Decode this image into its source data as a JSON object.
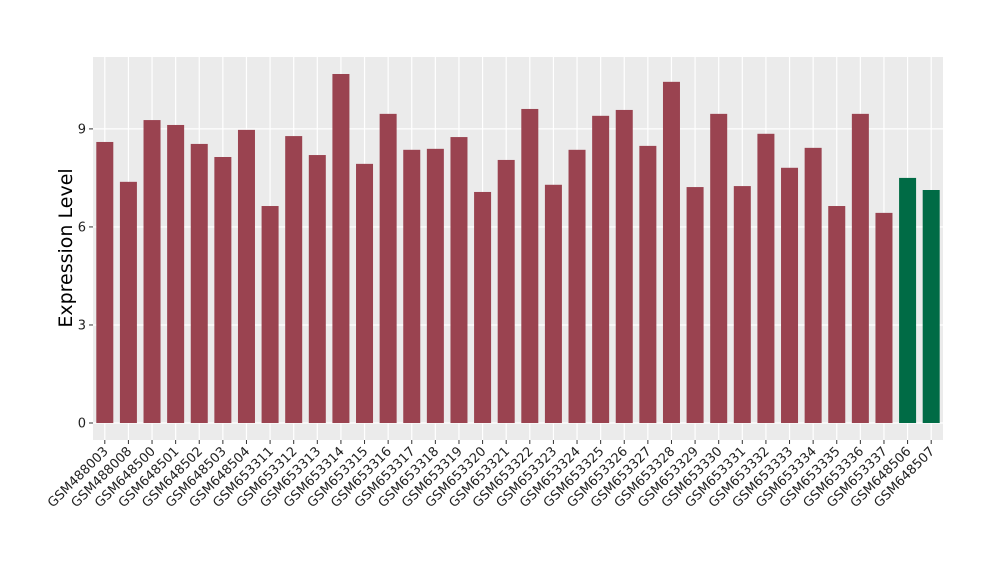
{
  "chart_data": {
    "type": "bar",
    "y_label": "Expression Level",
    "categories": [
      "GSM488003",
      "GSM488008",
      "GSM648500",
      "GSM648501",
      "GSM648502",
      "GSM648503",
      "GSM648504",
      "GSM653311",
      "GSM653312",
      "GSM653313",
      "GSM653314",
      "GSM653315",
      "GSM653316",
      "GSM653317",
      "GSM653318",
      "GSM653319",
      "GSM653320",
      "GSM653321",
      "GSM653322",
      "GSM653323",
      "GSM653324",
      "GSM653325",
      "GSM653326",
      "GSM653327",
      "GSM653328",
      "GSM653329",
      "GSM653330",
      "GSM653331",
      "GSM653332",
      "GSM653333",
      "GSM653334",
      "GSM653335",
      "GSM653336",
      "GSM653337",
      "GSM648506",
      "GSM648507"
    ],
    "values": [
      8.6,
      7.38,
      9.27,
      9.12,
      8.54,
      8.14,
      8.97,
      6.64,
      8.78,
      8.2,
      10.68,
      7.93,
      9.46,
      8.36,
      8.39,
      8.75,
      7.07,
      8.05,
      9.61,
      7.29,
      8.36,
      9.4,
      9.58,
      8.48,
      10.44,
      7.22,
      9.46,
      7.25,
      8.85,
      7.81,
      8.42,
      6.64,
      9.46,
      6.43,
      7.5,
      7.13
    ],
    "colors": [
      "#9a4350",
      "#9a4350",
      "#9a4350",
      "#9a4350",
      "#9a4350",
      "#9a4350",
      "#9a4350",
      "#9a4350",
      "#9a4350",
      "#9a4350",
      "#9a4350",
      "#9a4350",
      "#9a4350",
      "#9a4350",
      "#9a4350",
      "#9a4350",
      "#9a4350",
      "#9a4350",
      "#9a4350",
      "#9a4350",
      "#9a4350",
      "#9a4350",
      "#9a4350",
      "#9a4350",
      "#9a4350",
      "#9a4350",
      "#9a4350",
      "#9a4350",
      "#9a4350",
      "#9a4350",
      "#9a4350",
      "#9a4350",
      "#9a4350",
      "#9a4350",
      "#006b45",
      "#006b45"
    ],
    "ylim": [
      -0.52,
      11.2
    ],
    "yticks": [
      0,
      3,
      6,
      9
    ],
    "grid": true
  }
}
